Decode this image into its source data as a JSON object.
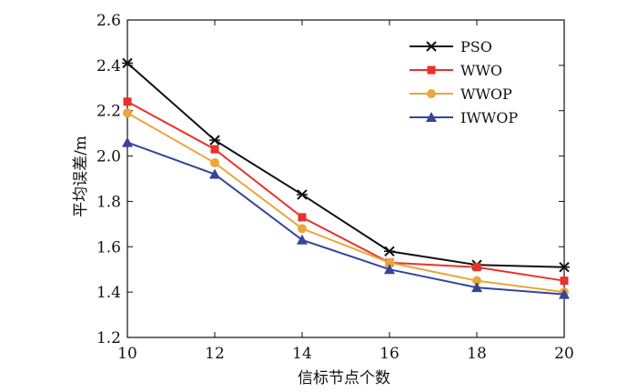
{
  "chart_data": {
    "type": "line",
    "title": "",
    "xlabel": "信标节点个数",
    "ylabel": "平均误差/m",
    "x": [
      10,
      12,
      14,
      16,
      18,
      20
    ],
    "xlim": [
      10,
      20
    ],
    "ylim": [
      1.2,
      2.6
    ],
    "xticks": [
      "10",
      "12",
      "14",
      "16",
      "18",
      "20"
    ],
    "yticks": [
      "1.2",
      "1.4",
      "1.6",
      "1.8",
      "2.0",
      "2.2",
      "2.4",
      "2.6"
    ],
    "grid": false,
    "legend_position": "top-right",
    "series": [
      {
        "name": "PSO",
        "marker": "x",
        "color": "#111111",
        "values": [
          2.41,
          2.07,
          1.83,
          1.58,
          1.52,
          1.51
        ]
      },
      {
        "name": "WWO",
        "marker": "square",
        "color": "#e8322b",
        "values": [
          2.24,
          2.03,
          1.73,
          1.53,
          1.51,
          1.45
        ]
      },
      {
        "name": "WWOP",
        "marker": "circle",
        "color": "#e8a83a",
        "values": [
          2.19,
          1.97,
          1.68,
          1.53,
          1.45,
          1.4
        ]
      },
      {
        "name": "IWWOP",
        "marker": "triangle",
        "color": "#36449a",
        "values": [
          2.06,
          1.92,
          1.63,
          1.5,
          1.42,
          1.39
        ]
      }
    ]
  }
}
